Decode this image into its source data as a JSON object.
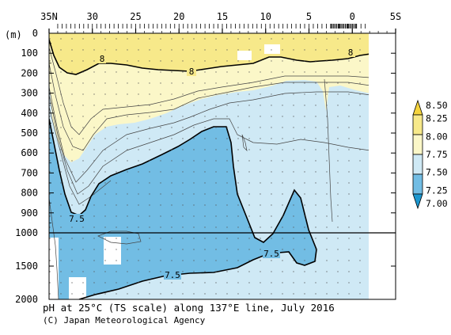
{
  "chart_data": {
    "type": "contour",
    "title": "pH at 25°C (TS scale) along 137°E line, July 2016",
    "credit": "(C) Japan Meteorological Agency",
    "y_unit_label": "(m)",
    "x_axis": {
      "ticks": [
        "35N",
        "30",
        "25",
        "20",
        "15",
        "10",
        "5",
        "0",
        "5S"
      ],
      "range_lat": [
        35,
        -5
      ]
    },
    "y_axis": {
      "upper_ticks": [
        0,
        100,
        200,
        300,
        400,
        500,
        600,
        700,
        800,
        900,
        1000
      ],
      "lower_ticks": [
        1500,
        2000
      ],
      "range_m": [
        0,
        2000
      ],
      "break_at_m": 1000
    },
    "colorbar": {
      "ticks": [
        "8.50",
        "8.25",
        "8.00",
        "7.75",
        "7.50",
        "7.25",
        "7.00"
      ],
      "colors": [
        "#f5d43d",
        "#f7e98a",
        "#fbf7c8",
        "#cfe9f5",
        "#72bde4",
        "#1c97cf"
      ]
    },
    "contour_labels": [
      "8",
      "8",
      "8",
      "7.5",
      "7.5",
      "7.5"
    ],
    "regions": [
      {
        "name": "> 8.00 surface layer",
        "color": "#f7e98a"
      },
      {
        "name": "7.75 - 8.00",
        "color": "#fbf7c8"
      },
      {
        "name": "7.50 - 7.75",
        "color": "#cfe9f5"
      },
      {
        "name": "7.25 - 7.50",
        "color": "#72bde4"
      }
    ]
  }
}
